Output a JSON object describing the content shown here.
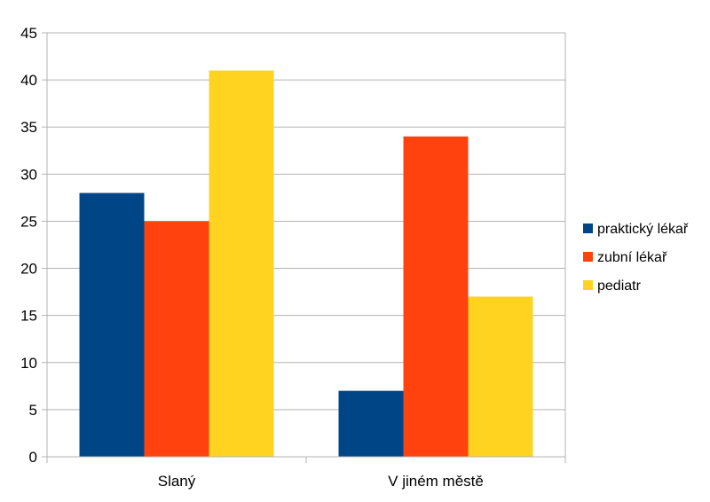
{
  "chart_data": {
    "type": "bar",
    "categories": [
      "Slaný",
      "V jiném městě"
    ],
    "series": [
      {
        "name": "praktický lékař",
        "values": [
          28,
          7
        ],
        "color": "#004586"
      },
      {
        "name": "zubní lékař",
        "values": [
          25,
          34
        ],
        "color": "#ff420e"
      },
      {
        "name": "pediatr",
        "values": [
          41,
          17
        ],
        "color": "#ffd320"
      }
    ],
    "ylim": [
      0,
      45
    ],
    "yticks": [
      0,
      5,
      10,
      15,
      20,
      25,
      30,
      35,
      40,
      45
    ],
    "grid": true,
    "legend_position": "right",
    "title": "",
    "xlabel": "",
    "ylabel": ""
  }
}
